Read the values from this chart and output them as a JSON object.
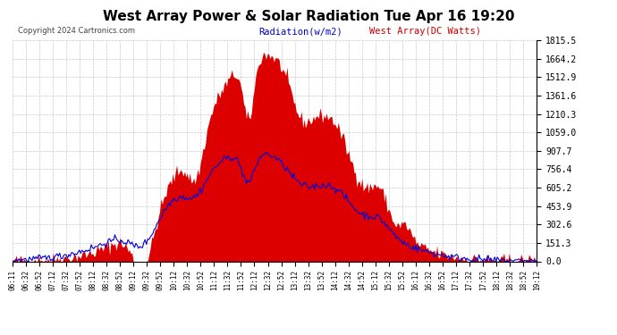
{
  "title": "West Array Power & Solar Radiation Tue Apr 16 19:20",
  "copyright": "Copyright 2024 Cartronics.com",
  "legend_radiation": "Radiation(w/m2)",
  "legend_west": "West Array(DC Watts)",
  "ymax": 1815.5,
  "yticks": [
    0.0,
    151.3,
    302.6,
    453.9,
    605.2,
    756.4,
    907.7,
    1059.0,
    1210.3,
    1361.6,
    1512.9,
    1664.2,
    1815.5
  ],
  "xtick_labels": [
    "06:11",
    "06:32",
    "06:52",
    "07:12",
    "07:32",
    "07:52",
    "08:12",
    "08:32",
    "08:52",
    "09:12",
    "09:32",
    "09:52",
    "10:12",
    "10:32",
    "10:52",
    "11:12",
    "11:32",
    "11:52",
    "12:12",
    "12:32",
    "12:52",
    "13:12",
    "13:32",
    "13:52",
    "14:12",
    "14:32",
    "14:52",
    "15:12",
    "15:32",
    "15:52",
    "16:12",
    "16:32",
    "16:52",
    "17:12",
    "17:32",
    "17:52",
    "18:12",
    "18:32",
    "18:52",
    "19:12"
  ],
  "bar_color": "#dd0000",
  "line_color": "#0000dd",
  "grid_color": "#bbbbbb",
  "bg_color": "#ffffff",
  "title_color": "#000000",
  "radiation_label_color": "#0000cc",
  "west_label_color": "#cc0000"
}
